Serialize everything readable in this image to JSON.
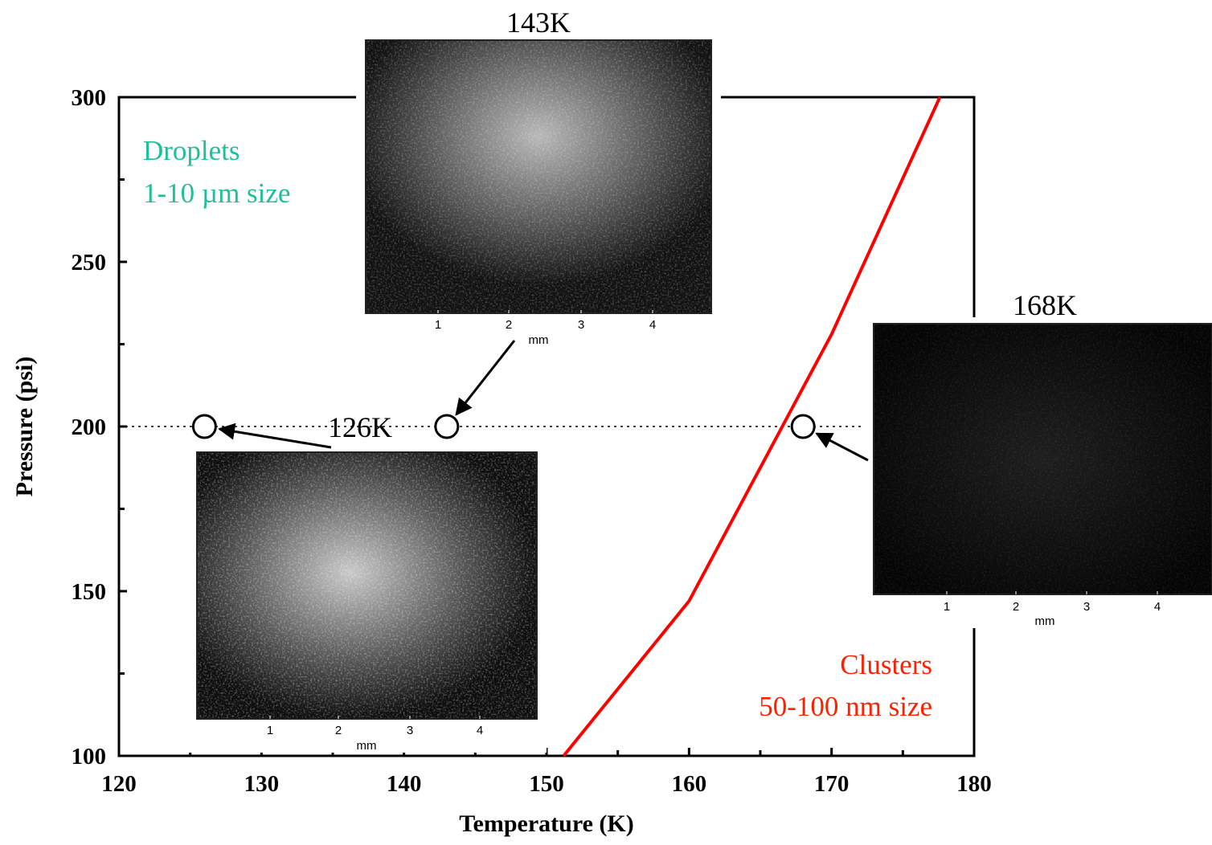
{
  "chart_data": {
    "type": "line",
    "xlabel": "Temperature (K)",
    "ylabel": "Pressure (psi)",
    "xlim": [
      120,
      180
    ],
    "ylim": [
      100,
      300
    ],
    "xticks": [
      120,
      130,
      140,
      150,
      160,
      170,
      180
    ],
    "yticks": [
      100,
      150,
      200,
      250,
      300
    ],
    "xminorticks": [
      125,
      135,
      145,
      155,
      165,
      175
    ],
    "yminorticks": [
      125,
      175,
      225,
      275
    ],
    "x": [
      151.2,
      160,
      170,
      177.6
    ],
    "values": [
      100,
      147,
      228,
      300
    ],
    "color": "#ff0000",
    "reference_y": 200,
    "points": {
      "x": [
        126,
        143,
        168
      ],
      "values": [
        200,
        200,
        200
      ]
    },
    "annotations": [
      {
        "text": "Droplets",
        "color": "#1fbf9a"
      },
      {
        "text": "1-10 µm size",
        "color": "#1fbf9a"
      },
      {
        "text": "Clusters",
        "color": "#ff2000"
      },
      {
        "text": "50-100 nm size",
        "color": "#ff2000"
      }
    ],
    "insets": [
      {
        "label": "143K",
        "scale_ticks": [
          1,
          2,
          3,
          4
        ],
        "scale_unit": "mm"
      },
      {
        "label": "126K",
        "scale_ticks": [
          1,
          2,
          3,
          4
        ],
        "scale_unit": "mm"
      },
      {
        "label": "168K",
        "scale_ticks": [
          1,
          2,
          3,
          4
        ],
        "scale_unit": "mm"
      }
    ]
  }
}
